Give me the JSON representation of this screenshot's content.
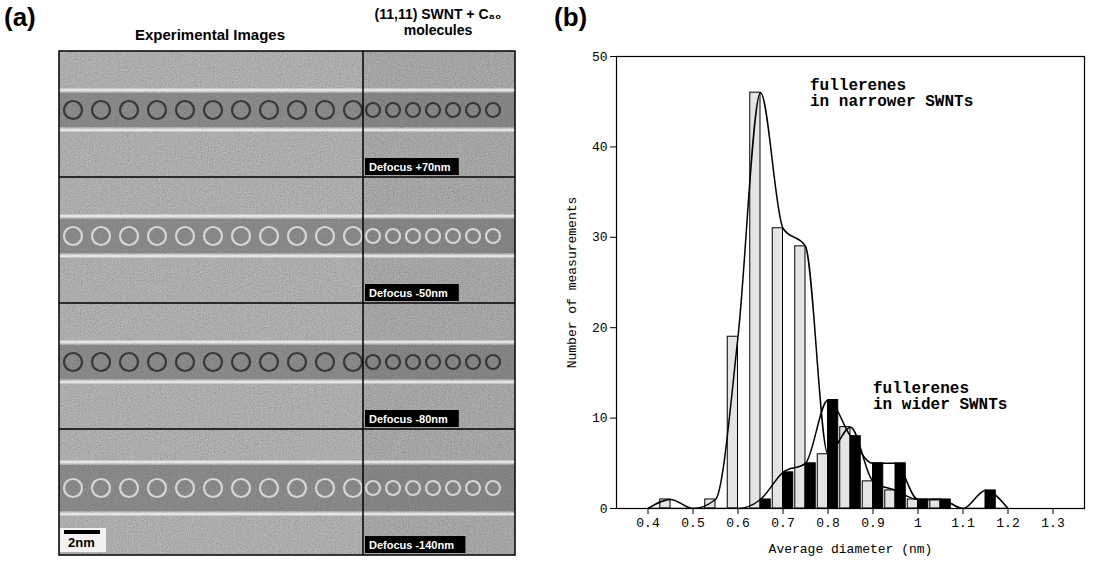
{
  "panel_a": {
    "label": "(a)",
    "column_heads": [
      "Experimental Images",
      "(11,11) SWNT + C₈₀ molecules"
    ],
    "defocus": [
      "Defocus +70nm",
      "Defocus -50nm",
      "Defocus -80nm",
      "Defocus -140nm"
    ],
    "scale_bar": "2nm"
  },
  "chart_data": {
    "type": "histogram",
    "panel_label": "(b)",
    "x_label": "Average diameter (nm)",
    "y_label": "Number of measurements",
    "bins": [
      0.375,
      0.425,
      0.475,
      0.525,
      0.575,
      0.625,
      0.675,
      0.725,
      0.775,
      0.825,
      0.875,
      0.925,
      0.975,
      1.025,
      1.075,
      1.125,
      1.175,
      1.225
    ],
    "series": [
      {
        "name": "fullerenes in narrower SWNTs",
        "color": "#e4e4e4",
        "values": [
          0,
          1,
          0,
          1,
          19,
          46,
          31,
          29,
          6,
          9,
          3,
          2,
          1,
          1,
          0,
          0,
          0
        ]
      },
      {
        "name": "fullerenes in wider SWNTs",
        "color": "#000000",
        "values": [
          0,
          0,
          0,
          0,
          0,
          1,
          4,
          5,
          12,
          8,
          5,
          5,
          1,
          1,
          0,
          2,
          0
        ]
      }
    ],
    "xlim": [
      0.33,
      1.37
    ],
    "ylim": [
      0,
      50
    ],
    "xticks": [
      0.4,
      0.5,
      0.6,
      0.7,
      0.8,
      0.9,
      1.0,
      1.1,
      1.2,
      1.3
    ],
    "yticks": [
      0,
      10,
      20,
      30,
      40,
      50
    ]
  }
}
